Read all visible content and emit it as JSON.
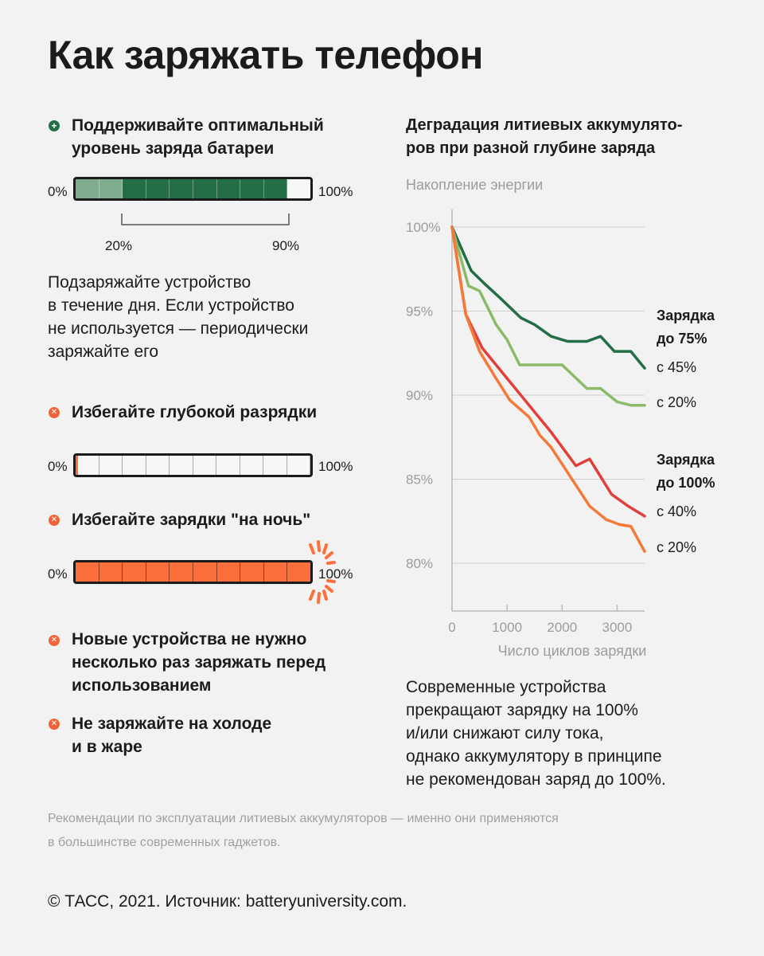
{
  "title": "Как заряжать телефон",
  "tips": {
    "optimal": {
      "heading": [
        "Поддерживайте оптимальный",
        "уровень заряда батареи"
      ],
      "icon": "plus-icon"
    },
    "optimal_bar": {
      "left": "0%",
      "right": "100%",
      "range_low": "20%",
      "range_high": "90%",
      "light_fill": 0.2,
      "fill": 0.9
    },
    "optimal_text": [
      "Подзаряжайте устройство",
      "в течение дня. Если устройство",
      "не используется — периодически",
      "заряжайте его"
    ],
    "deep": {
      "heading": "Избегайте глубокой разрядки",
      "icon": "cross-icon"
    },
    "deep_bar": {
      "left": "0%",
      "right": "100%",
      "fill": 0.01
    },
    "night": {
      "heading": "Избегайте зарядки \"на ночь\"",
      "icon": "cross-icon"
    },
    "night_bar": {
      "left": "0%",
      "right": "100%",
      "fill": 1.0
    },
    "new_devices": {
      "heading": [
        "Новые устройства не нужно",
        "несколько раз заряжать перед",
        "использованием"
      ],
      "icon": "cross-icon"
    },
    "cold": {
      "heading": [
        "Не заряжайте на холоде",
        "и в жаре"
      ],
      "icon": "cross-icon"
    }
  },
  "chart_text": {
    "title": [
      "Деградация литиевых аккумулято-",
      "ров при разной глубине заряда"
    ],
    "ylabel": "Накопление энергии",
    "xlabel": "Число циклов зарядки",
    "group75": [
      "Зарядка",
      "до 75%"
    ],
    "group100": [
      "Зарядка",
      "до 100%"
    ],
    "s45": "с 45%",
    "s20a": "с 20%",
    "s40": "с 40%",
    "s20b": "с 20%",
    "caption": [
      "Современные устройства",
      "прекращают зарядку на 100%",
      "и/или снижают силу тока,",
      "однако аккумулятору в принципе",
      "не рекомендован заряд до 100%."
    ]
  },
  "note": [
    "Рекомендации по эксплуатации литиевых аккумуляторов — именно они применяются",
    "в большинстве современных гаджетов."
  ],
  "copyright": "© ТАСС, 2021. Источник: batteryuniversity.com.",
  "colors": {
    "dark_green": "#236e46",
    "light_green": "#8bba69",
    "red": "#e23f3a",
    "orange": "#f57a3a",
    "bar_orange": "#fd6f3b"
  },
  "chart_data": {
    "type": "line",
    "title": "Деградация литиевых аккумуляторов при разной глубине заряда",
    "xlabel": "Число циклов зарядки",
    "ylabel": "Накопление энергии",
    "xlim": [
      0,
      3500
    ],
    "ylim": [
      78,
      100
    ],
    "xticks": [
      "0",
      "1000",
      "2000",
      "3000"
    ],
    "xtick_values": [
      0,
      1000,
      2000,
      3000
    ],
    "yticks": [
      "100%",
      "95%",
      "90%",
      "85%",
      "80%"
    ],
    "ytick_values": [
      100,
      95,
      90,
      85,
      80
    ],
    "series": [
      {
        "name": "Зарядка до 75% с 45%",
        "color": "#236e46",
        "x": [
          0,
          350,
          600,
          900,
          1250,
          1500,
          1800,
          2100,
          2450,
          2700,
          2950,
          3250,
          3500
        ],
        "y": [
          100,
          97.4,
          96.6,
          95.7,
          94.6,
          94.2,
          93.5,
          93.2,
          93.2,
          93.5,
          92.6,
          92.6,
          91.6
        ]
      },
      {
        "name": "Зарядка до 75% с 20%",
        "color": "#8bba69",
        "x": [
          0,
          300,
          500,
          800,
          1000,
          1230,
          1500,
          2000,
          2450,
          2700,
          3000,
          3250,
          3500
        ],
        "y": [
          100,
          96.5,
          96.2,
          94.2,
          93.3,
          91.8,
          91.8,
          91.8,
          90.4,
          90.4,
          89.6,
          89.4,
          89.4
        ]
      },
      {
        "name": "Зарядка до 100% с 40%",
        "color": "#e23f3a",
        "x": [
          0,
          250,
          550,
          800,
          1000,
          1200,
          1500,
          1800,
          2250,
          2500,
          2900,
          3200,
          3500
        ],
        "y": [
          100,
          94.8,
          92.8,
          91.8,
          91,
          90.2,
          89,
          87.8,
          85.8,
          86.2,
          84.1,
          83.4,
          82.8
        ]
      },
      {
        "name": "Зарядка до 100% с 20%",
        "color": "#f57a3a",
        "x": [
          0,
          250,
          500,
          800,
          1050,
          1400,
          1600,
          1800,
          2100,
          2500,
          2800,
          3050,
          3250,
          3500
        ],
        "y": [
          100,
          94.8,
          92.6,
          91,
          89.7,
          88.7,
          87.6,
          86.9,
          85.4,
          83.4,
          82.6,
          82.3,
          82.2,
          80.7
        ]
      }
    ]
  }
}
